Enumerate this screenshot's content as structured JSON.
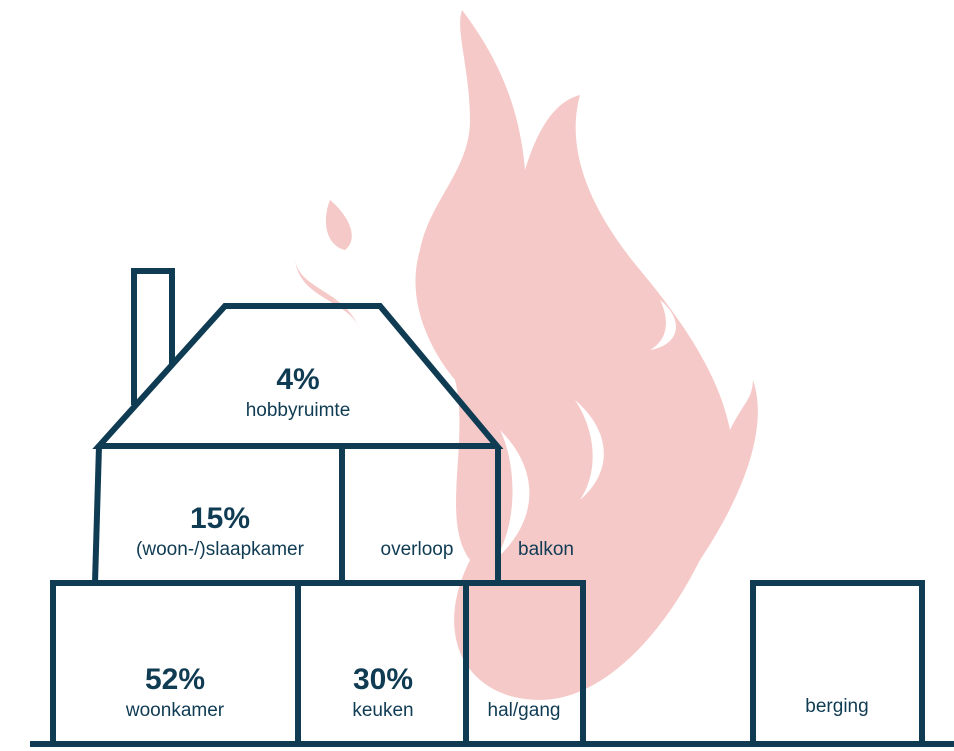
{
  "colors": {
    "outline": "#0f3b53",
    "flame": "#f6c9c9",
    "background": "#ffffff"
  },
  "rooms": {
    "hobbyruimte": {
      "percent": "4%",
      "label": "hobbyruimte"
    },
    "slaapkamer": {
      "percent": "15%",
      "label": "(woon-/)slaapkamer"
    },
    "overloop": {
      "label": "overloop"
    },
    "balkon": {
      "label": "balkon"
    },
    "woonkamer": {
      "percent": "52%",
      "label": "woonkamer"
    },
    "keuken": {
      "percent": "30%",
      "label": "keuken"
    },
    "halgang": {
      "label": "hal/gang"
    },
    "berging": {
      "label": "berging"
    }
  }
}
